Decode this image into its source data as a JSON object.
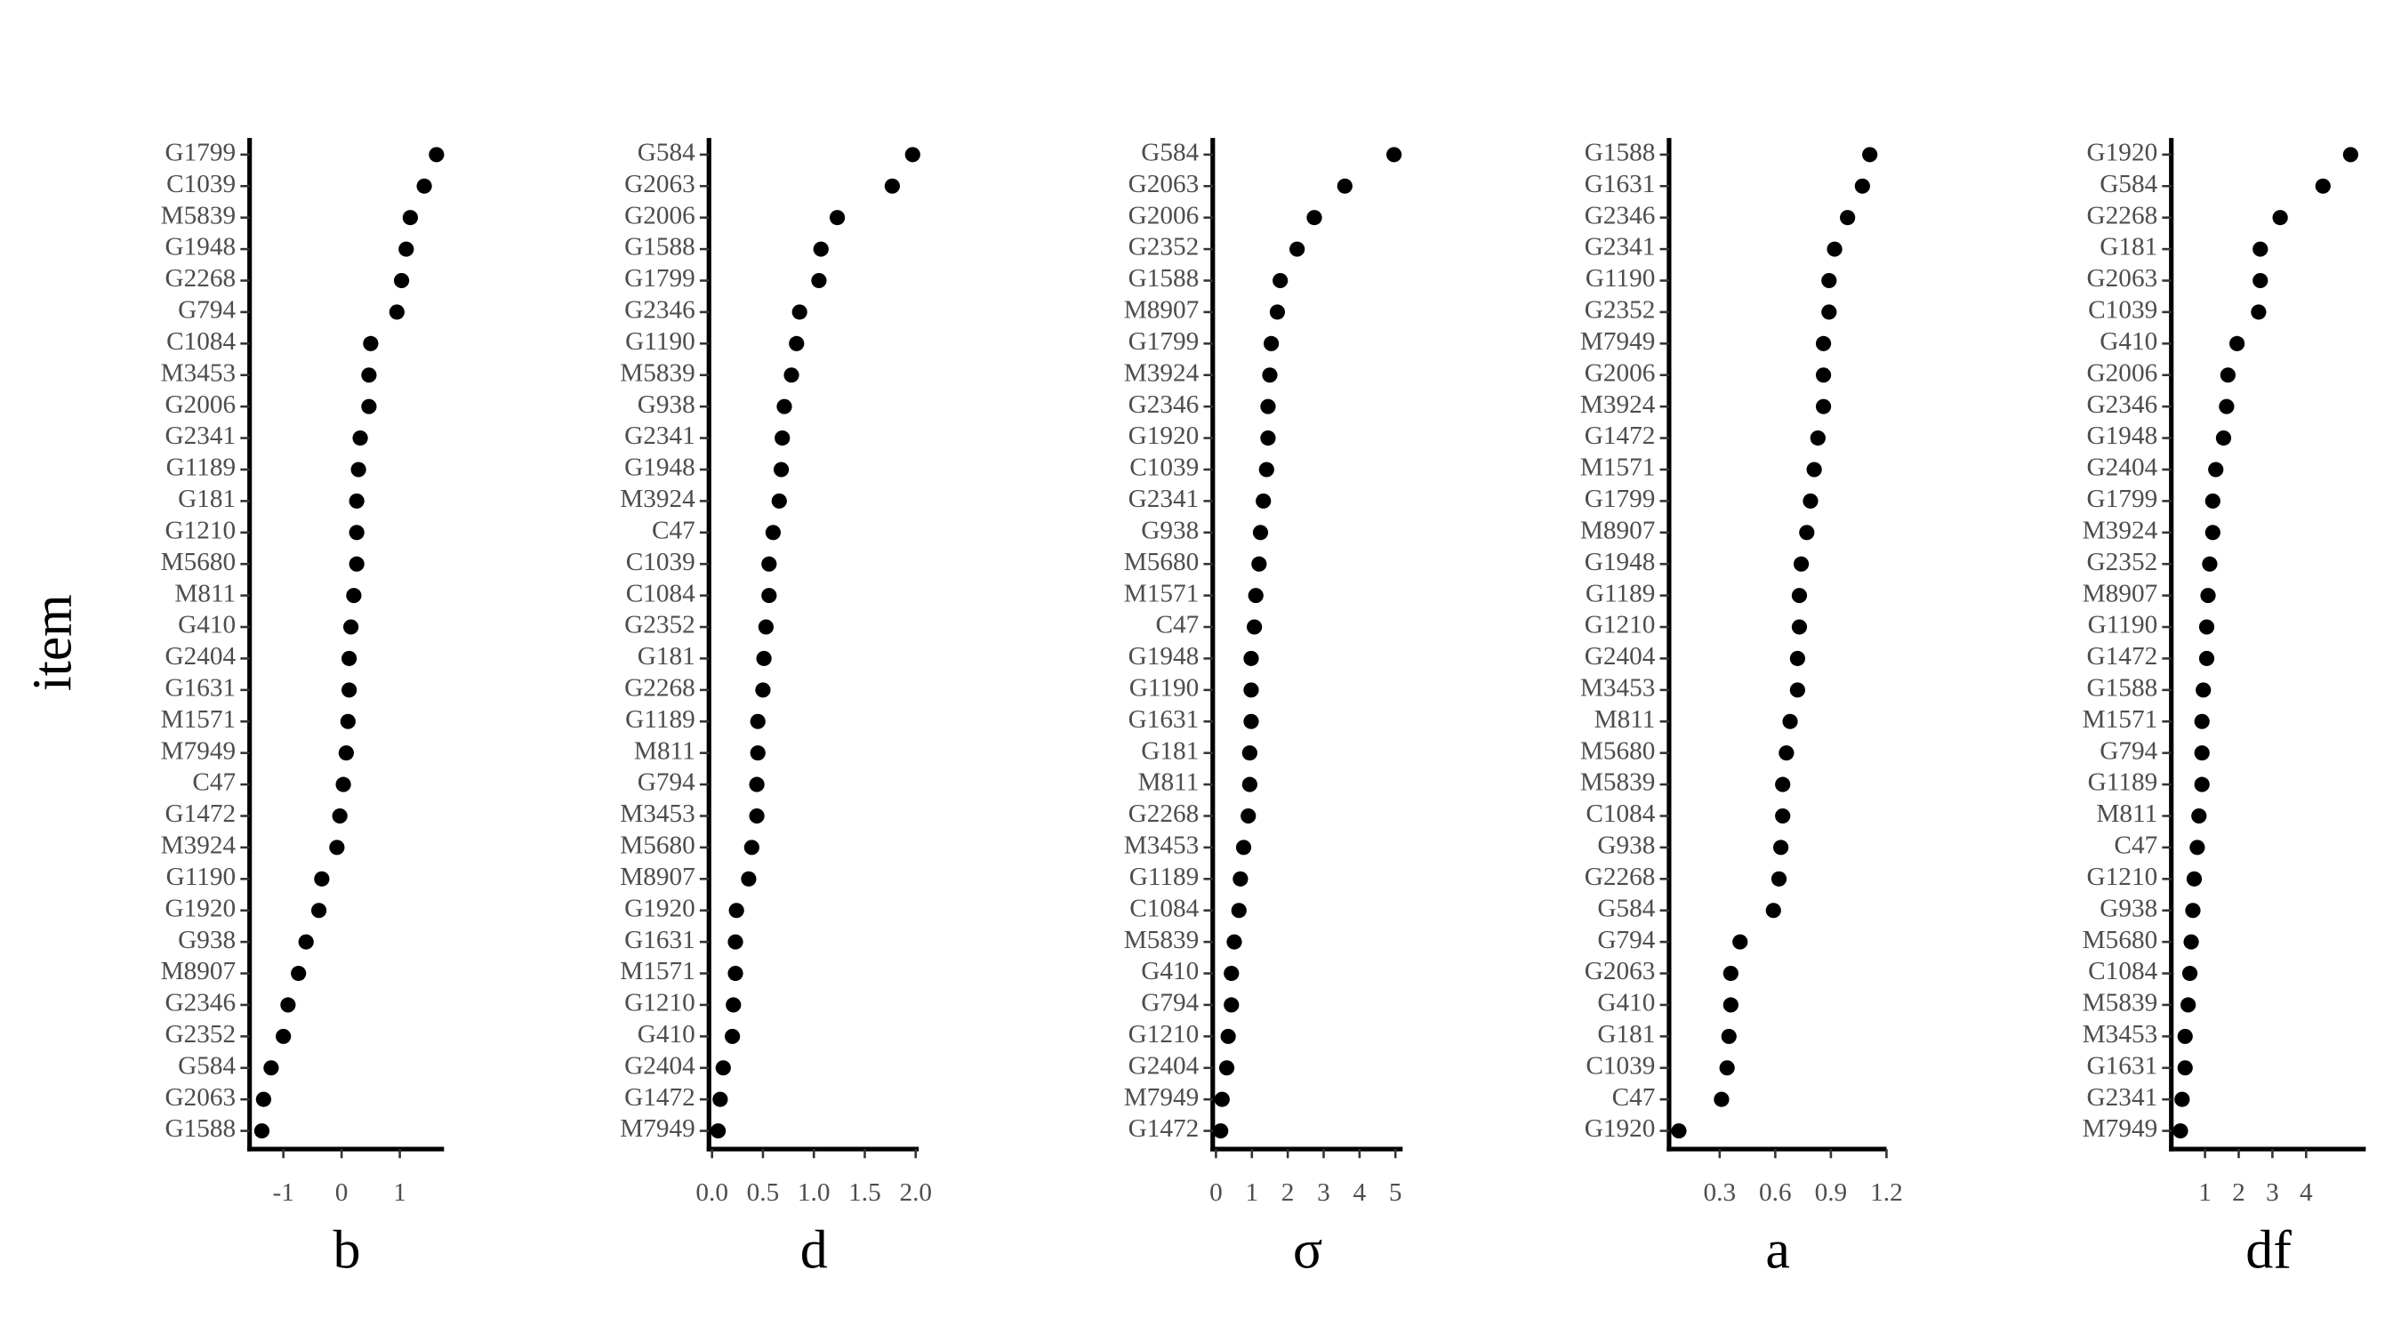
{
  "chart_data": [
    {
      "type": "dot",
      "ylabel": "item",
      "xlabel": "b",
      "color": "#000000",
      "categories": [
        "G1799",
        "C1039",
        "M5839",
        "G1948",
        "G2268",
        "G794",
        "C1084",
        "M3453",
        "G2006",
        "G2341",
        "G1189",
        "G181",
        "G1210",
        "M5680",
        "M811",
        "G410",
        "G2404",
        "G1631",
        "M1571",
        "M7949",
        "C47",
        "G1472",
        "M3924",
        "G1190",
        "G1920",
        "G938",
        "M8907",
        "G2346",
        "G2352",
        "G584",
        "G2063",
        "G1588"
      ],
      "values": [
        1.63,
        1.42,
        1.18,
        1.11,
        1.03,
        0.95,
        0.5,
        0.47,
        0.47,
        0.32,
        0.29,
        0.26,
        0.26,
        0.26,
        0.21,
        0.16,
        0.13,
        0.13,
        0.11,
        0.08,
        0.03,
        -0.03,
        -0.08,
        -0.34,
        -0.39,
        -0.61,
        -0.74,
        -0.92,
        -1.0,
        -1.21,
        -1.34,
        -1.37
      ],
      "xlim": [
        -1.58,
        1.76
      ],
      "xticks": [
        -1,
        0,
        1
      ]
    },
    {
      "type": "dot",
      "xlabel": "d",
      "color": "#000000",
      "categories": [
        "G584",
        "G2063",
        "G2006",
        "G1588",
        "G1799",
        "G2346",
        "G1190",
        "M5839",
        "G938",
        "G2341",
        "G1948",
        "M3924",
        "C47",
        "C1039",
        "C1084",
        "G2352",
        "G181",
        "G2268",
        "G1189",
        "M811",
        "G794",
        "M3453",
        "M5680",
        "M8907",
        "G1920",
        "G1631",
        "M1571",
        "G1210",
        "G410",
        "G2404",
        "G1472",
        "M7949"
      ],
      "values": [
        1.97,
        1.77,
        1.23,
        1.07,
        1.05,
        0.86,
        0.83,
        0.78,
        0.71,
        0.69,
        0.68,
        0.66,
        0.6,
        0.56,
        0.56,
        0.53,
        0.51,
        0.5,
        0.45,
        0.45,
        0.44,
        0.44,
        0.39,
        0.36,
        0.24,
        0.23,
        0.23,
        0.21,
        0.2,
        0.11,
        0.08,
        0.06
      ],
      "xlim": [
        -0.03,
        2.03
      ],
      "xticks": [
        {
          "value": 0,
          "label": "0.0"
        },
        0.5,
        {
          "value": 1,
          "label": "1.0"
        },
        1.5,
        {
          "value": 2,
          "label": "2.0"
        }
      ]
    },
    {
      "type": "dot",
      "xlabel": "σ",
      "color": "#000000",
      "categories": [
        "G584",
        "G2063",
        "G2006",
        "G2352",
        "G1588",
        "M8907",
        "G1799",
        "M3924",
        "G2346",
        "G1920",
        "C1039",
        "G2341",
        "G938",
        "M5680",
        "M1571",
        "C47",
        "G1948",
        "G1190",
        "G1631",
        "G181",
        "M811",
        "G2268",
        "M3453",
        "G1189",
        "C1084",
        "M5839",
        "G410",
        "G794",
        "G1210",
        "G2404",
        "M7949",
        "G1472"
      ],
      "values": [
        4.96,
        3.59,
        2.74,
        2.26,
        1.79,
        1.71,
        1.54,
        1.5,
        1.45,
        1.45,
        1.41,
        1.32,
        1.24,
        1.2,
        1.11,
        1.07,
        0.98,
        0.98,
        0.98,
        0.94,
        0.94,
        0.9,
        0.77,
        0.68,
        0.64,
        0.51,
        0.43,
        0.43,
        0.34,
        0.3,
        0.17,
        0.13
      ],
      "xlim": [
        -0.09,
        5.2
      ],
      "xticks": [
        0,
        1,
        2,
        3,
        4,
        5
      ]
    },
    {
      "type": "dot",
      "xlabel": "a",
      "color": "#000000",
      "categories": [
        "G1588",
        "G1631",
        "G2346",
        "G2341",
        "G1190",
        "G2352",
        "M7949",
        "G2006",
        "M3924",
        "G1472",
        "M1571",
        "G1799",
        "M8907",
        "G1948",
        "G1189",
        "G1210",
        "G2404",
        "M3453",
        "M811",
        "M5680",
        "M5839",
        "C1084",
        "G938",
        "G2268",
        "G584",
        "G794",
        "G2063",
        "G410",
        "G181",
        "C1039",
        "C47",
        "G1920"
      ],
      "values": [
        1.11,
        1.07,
        0.99,
        0.92,
        0.89,
        0.89,
        0.86,
        0.86,
        0.86,
        0.83,
        0.81,
        0.79,
        0.77,
        0.74,
        0.73,
        0.73,
        0.72,
        0.72,
        0.68,
        0.66,
        0.64,
        0.64,
        0.63,
        0.62,
        0.59,
        0.41,
        0.36,
        0.36,
        0.35,
        0.34,
        0.31,
        0.08
      ],
      "xlim": [
        0.027,
        1.2
      ],
      "xticks": [
        0.3,
        0.6,
        0.9,
        1.2
      ]
    },
    {
      "type": "dot",
      "xlabel": "df",
      "color": "#000000",
      "categories": [
        "G1920",
        "G584",
        "G2268",
        "G181",
        "G2063",
        "C1039",
        "G410",
        "G2006",
        "G2346",
        "G1948",
        "G2404",
        "G1799",
        "M3924",
        "G2352",
        "M8907",
        "G1190",
        "G1472",
        "G1588",
        "M1571",
        "G794",
        "G1189",
        "M811",
        "C47",
        "G1210",
        "G938",
        "M5680",
        "C1084",
        "M5839",
        "M3453",
        "G1631",
        "G2341",
        "M7949"
      ],
      "values": [
        5.32,
        4.5,
        3.23,
        2.64,
        2.64,
        2.59,
        1.95,
        1.68,
        1.64,
        1.55,
        1.32,
        1.23,
        1.23,
        1.14,
        1.09,
        1.05,
        1.05,
        0.95,
        0.91,
        0.91,
        0.91,
        0.82,
        0.77,
        0.68,
        0.64,
        0.59,
        0.55,
        0.5,
        0.41,
        0.41,
        0.32,
        0.27
      ],
      "xlim": [
        0,
        5.77
      ],
      "xticks": [
        1,
        2,
        3,
        4
      ]
    }
  ]
}
